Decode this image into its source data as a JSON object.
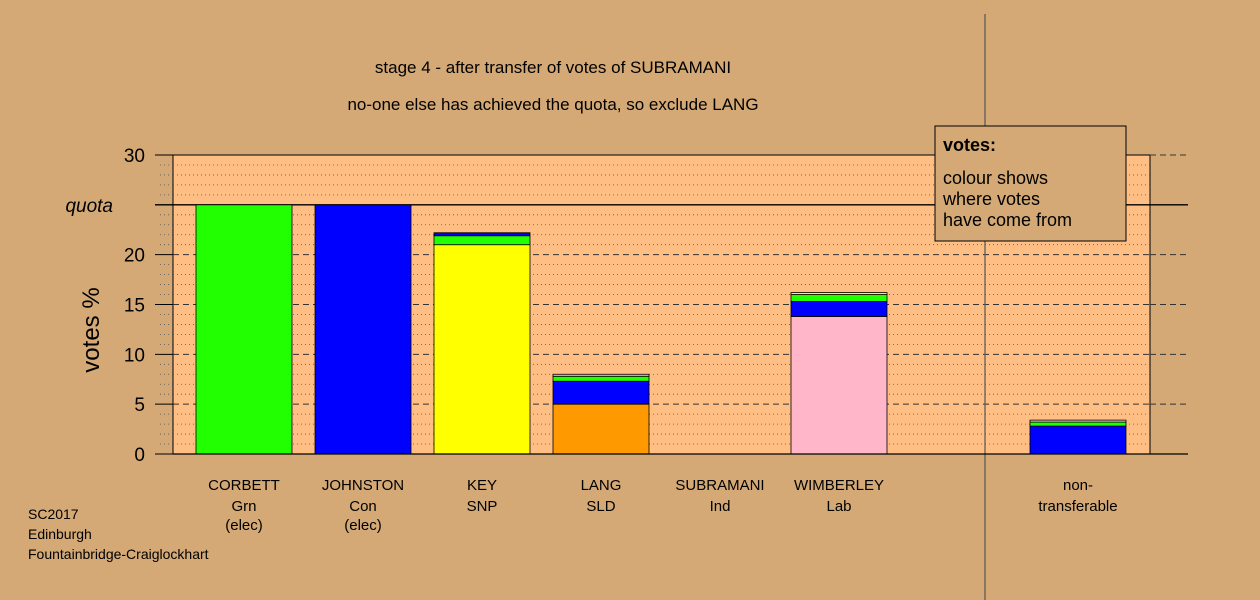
{
  "chart_data": {
    "type": "bar",
    "stacked": true,
    "title": "stage 4 - after transfer of votes of SUBRAMANI",
    "subtitle": "no-one else has achieved the quota, so exclude LANG",
    "ylabel": "votes %",
    "ylim": [
      0,
      30
    ],
    "yticks": [
      "0",
      "5",
      "10",
      "15",
      "20",
      "25",
      "30"
    ],
    "quota": {
      "value": 25,
      "label": "quota"
    },
    "grid": true,
    "legend": {
      "position": "top-right",
      "title": "votes:",
      "lines": [
        "colour shows",
        "where votes",
        "have come from"
      ]
    },
    "candidates": [
      {
        "name": "CORBETT",
        "party": "Grn",
        "status": "(elec)",
        "segments": [
          {
            "color": "#22ff00",
            "value": 25.0
          }
        ]
      },
      {
        "name": "JOHNSTON",
        "party": "Con",
        "status": "(elec)",
        "segments": [
          {
            "color": "#0000ff",
            "value": 25.0
          }
        ]
      },
      {
        "name": "KEY",
        "party": "SNP",
        "status": "",
        "segments": [
          {
            "color": "#ffff00",
            "value": 21.0
          },
          {
            "color": "#22ff00",
            "value": 0.9
          },
          {
            "color": "#0000ff",
            "value": 0.3
          }
        ]
      },
      {
        "name": "LANG",
        "party": "SLD",
        "status": "",
        "segments": [
          {
            "color": "#ff9900",
            "value": 5.0
          },
          {
            "color": "#0000ff",
            "value": 2.3
          },
          {
            "color": "#22ff00",
            "value": 0.5
          },
          {
            "color": "#ffb6c8",
            "value": 0.2
          }
        ]
      },
      {
        "name": "SUBRAMANI",
        "party": "Ind",
        "status": "",
        "segments": []
      },
      {
        "name": "WIMBERLEY",
        "party": "Lab",
        "status": "",
        "segments": [
          {
            "color": "#ffb6c8",
            "value": 13.8
          },
          {
            "color": "#0000ff",
            "value": 1.5
          },
          {
            "color": "#22ff00",
            "value": 0.7
          },
          {
            "color": "#ffff00",
            "value": 0.2
          }
        ]
      }
    ],
    "nontransferable": {
      "label_lines": [
        "non-",
        "transferable"
      ],
      "segments": [
        {
          "color": "#0000ff",
          "value": 2.8
        },
        {
          "color": "#22ff00",
          "value": 0.4
        },
        {
          "color": "#ffb6c8",
          "value": 0.2
        }
      ]
    },
    "colors": {
      "plot_bg": "#ffbf84",
      "page_bg": "#d4a976"
    }
  },
  "footer": {
    "line1": "SC2017",
    "line2": "Edinburgh",
    "line3": "Fountainbridge-Craiglockhart"
  }
}
